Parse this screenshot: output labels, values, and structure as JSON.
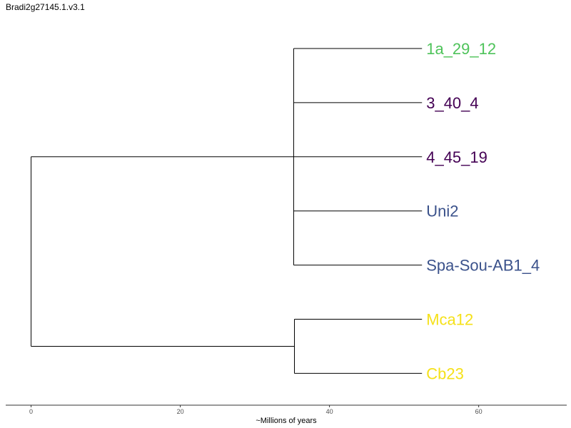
{
  "title": "Bradi2g27145.1.v3.1",
  "axis": {
    "xlabel": "~Millions of years",
    "xlim": [
      -3.4,
      71.8
    ],
    "ticks": [
      0,
      20,
      40,
      60
    ],
    "tick_labels": [
      "0",
      "20",
      "40",
      "60"
    ]
  },
  "tree": {
    "root_x": 0,
    "clades": [
      {
        "name": "clade-a",
        "node_x": 35.2,
        "leaves": [
          0,
          1,
          2,
          3,
          4
        ]
      },
      {
        "name": "clade-b",
        "node_x": 35.3,
        "leaves": [
          5,
          6
        ]
      }
    ],
    "leaves": [
      {
        "label": "1a_29_12",
        "color": "#4ec35a",
        "x": 52.4
      },
      {
        "label": "3_40_4",
        "color": "#440154",
        "x": 52.4
      },
      {
        "label": "4_45_19",
        "color": "#440154",
        "x": 52.4
      },
      {
        "label": "Uni2",
        "color": "#3b528b",
        "x": 52.4
      },
      {
        "label": "Spa-Sou-AB1_4",
        "color": "#3b528b",
        "x": 52.4
      },
      {
        "label": "Mca12",
        "color": "#f5e11a",
        "x": 52.4
      },
      {
        "label": "Cb23",
        "color": "#f5e11a",
        "x": 52.4
      }
    ]
  }
}
